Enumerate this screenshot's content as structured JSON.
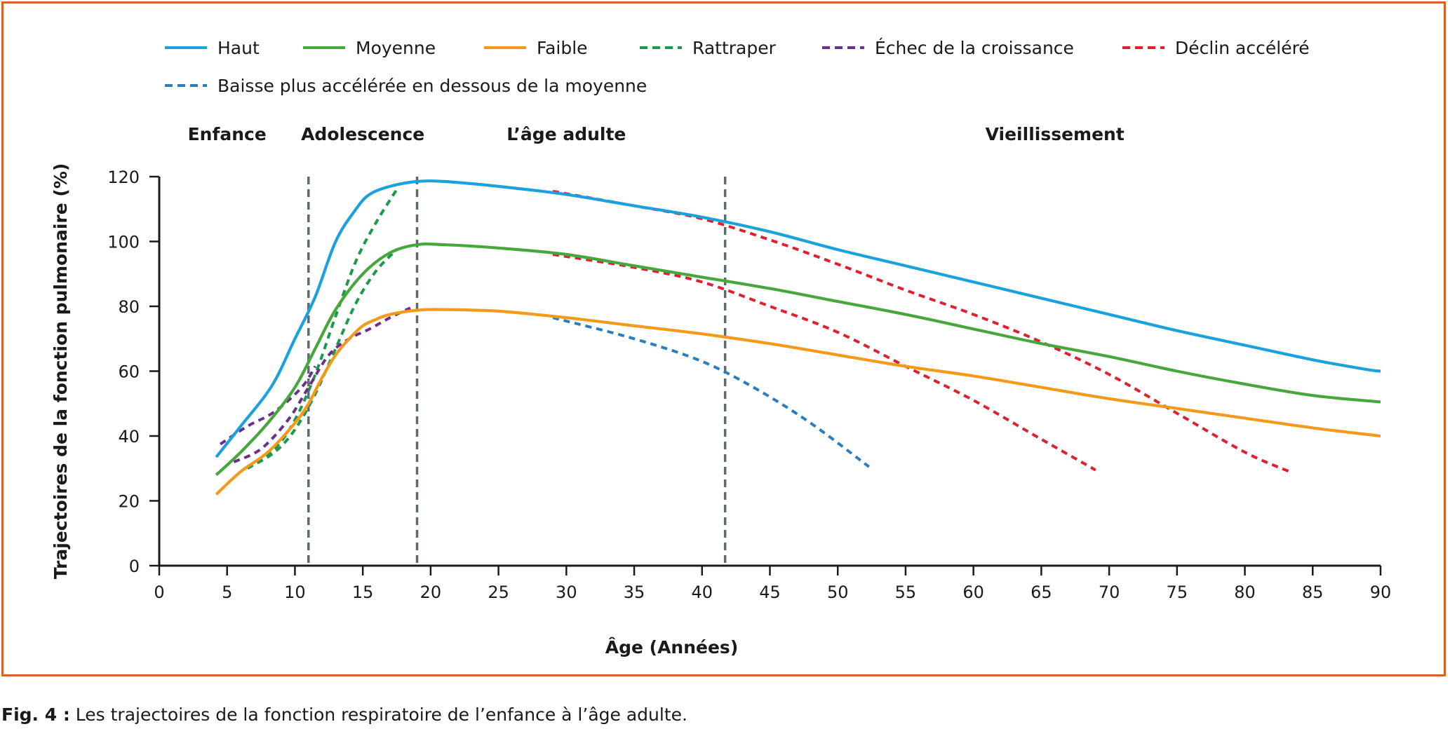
{
  "caption": {
    "label": "Fig. 4 :",
    "text": " Les trajectoires de la fonction respiratoire de l’enfance à l’âge adulte."
  },
  "chart_data": {
    "type": "line",
    "xlabel": "Âge (Années)",
    "ylabel": "Trajectoires de la fonction pulmonaire (%)",
    "xlim": [
      0,
      90
    ],
    "ylim": [
      0,
      120
    ],
    "xticks": [
      "0",
      "5",
      "10",
      "15",
      "20",
      "25",
      "30",
      "35",
      "40",
      "45",
      "50",
      "55",
      "60",
      "65",
      "70",
      "75",
      "80",
      "85",
      "90"
    ],
    "yticks": [
      "0",
      "20",
      "40",
      "60",
      "80",
      "100",
      "120"
    ],
    "grid": false,
    "legend_position": "top",
    "legend": [
      {
        "label": "Haut",
        "color": "#1ba1dc",
        "dashed": false
      },
      {
        "label": "Moyenne",
        "color": "#46a83c",
        "dashed": false
      },
      {
        "label": "Faible",
        "color": "#f39a1b",
        "dashed": false
      },
      {
        "label": "Rattraper",
        "color": "#1a9a4a",
        "dashed": true
      },
      {
        "label": "Échec de la croissance",
        "color": "#6a2f8f",
        "dashed": true
      },
      {
        "label": "Déclin accéléré",
        "color": "#e0202e",
        "dashed": true
      },
      {
        "label": "Baisse plus accélérée en dessous de la moyenne",
        "color": "#2a7ec0",
        "dashed": true
      }
    ],
    "phases": [
      {
        "label": "Enfance",
        "x": 5
      },
      {
        "label": "Adolescence",
        "x": 15
      },
      {
        "label": "L’âge adulte",
        "x": 30
      },
      {
        "label": "Vieillissement",
        "x": 66
      }
    ],
    "phase_boundaries": [
      11,
      19,
      41.7
    ],
    "series": [
      {
        "name": "Haut",
        "color": "#1ba1dc",
        "dashed": false,
        "x": [
          4.2,
          6,
          8.3,
          10,
          11.5,
          13,
          14.5,
          15.5,
          17,
          19,
          21,
          25,
          30,
          35,
          40,
          45,
          50,
          55,
          60,
          65,
          70,
          75,
          80,
          85,
          89,
          90
        ],
        "y": [
          33.5,
          43,
          55.5,
          70,
          83,
          100,
          110,
          114.5,
          117,
          118.5,
          118.5,
          117,
          114.5,
          111,
          107.5,
          103,
          97.5,
          92.5,
          87.5,
          82.5,
          77.5,
          72.5,
          68,
          63.5,
          60.5,
          60
        ]
      },
      {
        "name": "Moyenne",
        "color": "#46a83c",
        "dashed": false,
        "x": [
          4.2,
          6,
          8,
          10,
          11.5,
          13,
          15,
          17,
          19,
          21,
          25,
          30,
          35,
          40,
          45,
          50,
          55,
          60,
          65,
          70,
          75,
          80,
          85,
          90
        ],
        "y": [
          28,
          35,
          44,
          55,
          67,
          79,
          90,
          96.5,
          99,
          99,
          98,
          96,
          92.5,
          89,
          85.5,
          81.5,
          77.5,
          73,
          68.5,
          64.5,
          60,
          56,
          52.5,
          50.5
        ]
      },
      {
        "name": "Faible",
        "color": "#f39a1b",
        "dashed": false,
        "x": [
          4.2,
          6,
          8,
          10,
          11,
          12,
          13,
          14,
          15,
          16,
          17,
          19,
          21,
          25,
          30,
          35,
          40,
          45,
          50,
          55,
          60,
          65,
          70,
          75,
          80,
          85,
          90
        ],
        "y": [
          22,
          29,
          35,
          44,
          50,
          58,
          65,
          70,
          74,
          76,
          77.5,
          78.8,
          79,
          78.5,
          76.5,
          74,
          71.5,
          68.5,
          65,
          61.5,
          58.5,
          55,
          51.5,
          48.5,
          45.5,
          42.5,
          40
        ]
      },
      {
        "name": "Rattraper",
        "color": "#1a9a4a",
        "dashed": true,
        "x": [
          6.5,
          8.5,
          10,
          11.5,
          13,
          14.5,
          16,
          17.5
        ],
        "y": [
          30,
          36,
          45,
          59,
          77,
          94,
          106,
          116
        ]
      },
      {
        "name": "Rattraper",
        "color": "#1a9a4a",
        "dashed": true,
        "x": [
          6.5,
          8.5,
          10,
          11.5,
          13,
          14.5,
          16,
          17.5
        ],
        "y": [
          30,
          35,
          42,
          53,
          67,
          81,
          91,
          97.5
        ]
      },
      {
        "name": "Échec de la croissance",
        "color": "#6a2f8f",
        "dashed": true,
        "x": [
          4.5,
          6.5,
          8.5,
          10.5,
          11.5
        ],
        "y": [
          37.5,
          43,
          47.5,
          55,
          61.5
        ]
      },
      {
        "name": "Échec de la croissance",
        "color": "#6a2f8f",
        "dashed": true,
        "x": [
          5.5,
          7.5,
          9.5,
          11,
          12.5,
          14,
          15.5,
          17,
          18.5
        ],
        "y": [
          32,
          36,
          45,
          55,
          65,
          70,
          73,
          76.5,
          79.5
        ]
      },
      {
        "name": "Déclin accéléré",
        "color": "#e0202e",
        "dashed": true,
        "x": [
          29,
          35,
          40,
          45,
          50,
          55,
          60,
          65,
          70,
          75,
          80,
          83.3
        ],
        "y": [
          115.5,
          111,
          107,
          100.5,
          93,
          85,
          77.5,
          69,
          59,
          47,
          35,
          29
        ]
      },
      {
        "name": "Déclin accéléré",
        "color": "#e0202e",
        "dashed": true,
        "x": [
          29,
          35,
          40,
          45,
          50,
          55,
          60,
          65,
          69
        ],
        "y": [
          96,
          92,
          87.5,
          80,
          72,
          61.5,
          51,
          39,
          29.5
        ]
      },
      {
        "name": "Baisse plus accélérée en dessous de la moyenne",
        "color": "#2a7ec0",
        "dashed": true,
        "x": [
          29,
          35,
          40,
          44,
          48,
          52.3
        ],
        "y": [
          76.5,
          70,
          63,
          54.5,
          44,
          30.5
        ]
      }
    ]
  }
}
